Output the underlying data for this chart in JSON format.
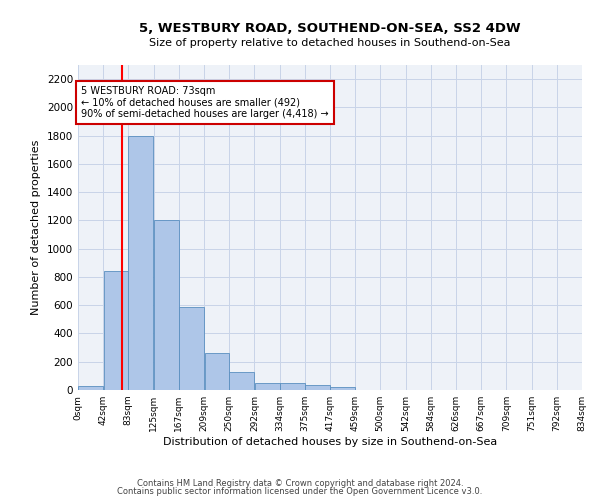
{
  "title1": "5, WESTBURY ROAD, SOUTHEND-ON-SEA, SS2 4DW",
  "title2": "Size of property relative to detached houses in Southend-on-Sea",
  "xlabel": "Distribution of detached houses by size in Southend-on-Sea",
  "ylabel": "Number of detached properties",
  "bar_heights": [
    25,
    845,
    1800,
    1200,
    590,
    260,
    125,
    50,
    50,
    35,
    20,
    0,
    0,
    0,
    0,
    0,
    0,
    0,
    0,
    0
  ],
  "bin_edges": [
    0,
    42,
    83,
    125,
    167,
    209,
    250,
    292,
    334,
    375,
    417,
    459,
    500,
    542,
    584,
    626,
    667,
    709,
    751,
    792,
    834
  ],
  "tick_labels": [
    "0sqm",
    "42sqm",
    "83sqm",
    "125sqm",
    "167sqm",
    "209sqm",
    "250sqm",
    "292sqm",
    "334sqm",
    "375sqm",
    "417sqm",
    "459sqm",
    "500sqm",
    "542sqm",
    "584sqm",
    "626sqm",
    "667sqm",
    "709sqm",
    "751sqm",
    "792sqm",
    "834sqm"
  ],
  "bar_color": "#aec6e8",
  "bar_edge_color": "#5a8fc0",
  "grid_color": "#c8d4e8",
  "background_color": "#eef2f8",
  "red_line_x": 73,
  "annotation_text": "5 WESTBURY ROAD: 73sqm\n← 10% of detached houses are smaller (492)\n90% of semi-detached houses are larger (4,418) →",
  "annotation_box_color": "#ffffff",
  "annotation_border_color": "#cc0000",
  "ylim": [
    0,
    2300
  ],
  "yticks": [
    0,
    200,
    400,
    600,
    800,
    1000,
    1200,
    1400,
    1600,
    1800,
    2000,
    2200
  ],
  "footer1": "Contains HM Land Registry data © Crown copyright and database right 2024.",
  "footer2": "Contains public sector information licensed under the Open Government Licence v3.0."
}
